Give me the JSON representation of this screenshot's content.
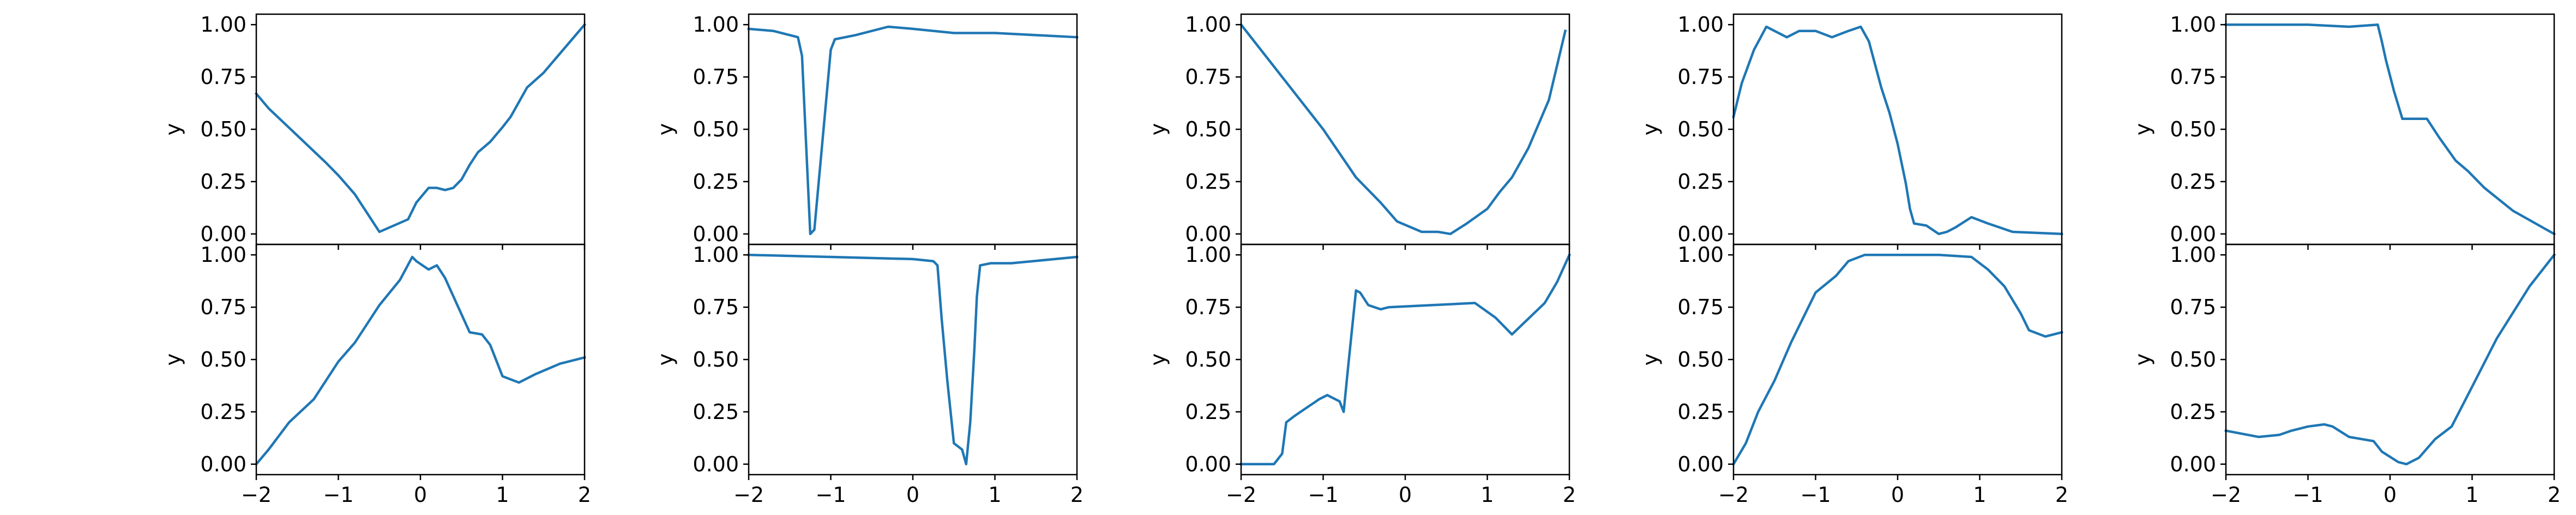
{
  "figure": {
    "background": "#ffffff",
    "line_color": "#1f77b4",
    "axes_color": "#000000"
  },
  "chart_data": [
    {
      "type": "line",
      "panel": "top",
      "column": 1,
      "xlabel": "",
      "ylabel": "y",
      "xlim": [
        -2,
        2
      ],
      "ylim": [
        -0.05,
        1.05
      ],
      "xticks": [
        -2,
        -1,
        0,
        1,
        2
      ],
      "yticks": [
        0,
        0.25,
        0.5,
        0.75,
        1
      ],
      "ytick_labels": [
        "0.00",
        "0.25",
        "0.50",
        "0.75",
        "1.00"
      ],
      "series": [
        {
          "x": [
            -2,
            -1.85,
            -1.5,
            -1.15,
            -1,
            -0.8,
            -0.5,
            -0.15,
            -0.05,
            0.1,
            0.2,
            0.3,
            0.4,
            0.5,
            0.6,
            0.7,
            0.85,
            1,
            1.1,
            1.3,
            1.5,
            2
          ],
          "y": [
            0.67,
            0.6,
            0.47,
            0.34,
            0.28,
            0.19,
            0.01,
            0.07,
            0.15,
            0.22,
            0.22,
            0.21,
            0.22,
            0.26,
            0.33,
            0.39,
            0.44,
            0.51,
            0.56,
            0.7,
            0.77,
            1.0
          ]
        }
      ]
    },
    {
      "type": "line",
      "panel": "bottom",
      "column": 1,
      "xlabel": "",
      "ylabel": "y",
      "xlim": [
        -2,
        2
      ],
      "ylim": [
        -0.05,
        1.05
      ],
      "xticks": [
        -2,
        -1,
        0,
        1,
        2
      ],
      "xtick_labels": [
        "−2",
        "−1",
        "0",
        "1",
        "2"
      ],
      "yticks": [
        0,
        0.25,
        0.5,
        0.75,
        1
      ],
      "ytick_labels": [
        "0.00",
        "0.25",
        "0.50",
        "0.75",
        "1.00"
      ],
      "series": [
        {
          "x": [
            -2,
            -1.85,
            -1.6,
            -1.3,
            -1,
            -0.8,
            -0.5,
            -0.25,
            -0.1,
            -0.05,
            0.1,
            0.2,
            0.3,
            0.45,
            0.6,
            0.75,
            0.85,
            1,
            1.2,
            1.4,
            1.7,
            2
          ],
          "y": [
            0.0,
            0.07,
            0.2,
            0.31,
            0.49,
            0.58,
            0.76,
            0.88,
            0.99,
            0.97,
            0.93,
            0.95,
            0.89,
            0.76,
            0.63,
            0.62,
            0.57,
            0.42,
            0.39,
            0.43,
            0.48,
            0.51
          ]
        }
      ]
    },
    {
      "type": "line",
      "panel": "top",
      "column": 2,
      "xlabel": "",
      "ylabel": "y",
      "xlim": [
        -2,
        2
      ],
      "ylim": [
        -0.05,
        1.05
      ],
      "xticks": [
        -2,
        -1,
        0,
        1,
        2
      ],
      "yticks": [
        0,
        0.25,
        0.5,
        0.75,
        1
      ],
      "ytick_labels": [
        "0.00",
        "0.25",
        "0.50",
        "0.75",
        "1.00"
      ],
      "series": [
        {
          "x": [
            -2,
            -1.7,
            -1.4,
            -1.35,
            -1.25,
            -1.2,
            -1.1,
            -1,
            -0.95,
            -0.7,
            -0.3,
            0,
            0.5,
            1,
            1.5,
            2
          ],
          "y": [
            0.98,
            0.97,
            0.94,
            0.85,
            0.0,
            0.02,
            0.45,
            0.88,
            0.93,
            0.95,
            0.99,
            0.98,
            0.96,
            0.96,
            0.95,
            0.94
          ]
        }
      ]
    },
    {
      "type": "line",
      "panel": "bottom",
      "column": 2,
      "xlabel": "",
      "ylabel": "y",
      "xlim": [
        -2,
        2
      ],
      "ylim": [
        -0.05,
        1.05
      ],
      "xticks": [
        -2,
        -1,
        0,
        1,
        2
      ],
      "xtick_labels": [
        "−2",
        "−1",
        "0",
        "1",
        "2"
      ],
      "yticks": [
        0,
        0.25,
        0.5,
        0.75,
        1
      ],
      "ytick_labels": [
        "0.00",
        "0.25",
        "0.50",
        "0.75",
        "1.00"
      ],
      "series": [
        {
          "x": [
            -2,
            -1,
            0,
            0.25,
            0.3,
            0.35,
            0.42,
            0.5,
            0.6,
            0.65,
            0.7,
            0.75,
            0.78,
            0.82,
            0.95,
            1.2,
            2
          ],
          "y": [
            1.0,
            0.99,
            0.98,
            0.97,
            0.95,
            0.7,
            0.4,
            0.1,
            0.07,
            0.0,
            0.2,
            0.55,
            0.8,
            0.95,
            0.96,
            0.96,
            0.99
          ]
        }
      ]
    },
    {
      "type": "line",
      "panel": "top",
      "column": 3,
      "xlabel": "",
      "ylabel": "y",
      "xlim": [
        -2,
        2
      ],
      "ylim": [
        -0.05,
        1.05
      ],
      "xticks": [
        -2,
        -1,
        0,
        1,
        2
      ],
      "yticks": [
        0,
        0.25,
        0.5,
        0.75,
        1
      ],
      "ytick_labels": [
        "0.00",
        "0.25",
        "0.50",
        "0.75",
        "1.00"
      ],
      "series": [
        {
          "x": [
            -2,
            -1.5,
            -1,
            -0.6,
            -0.3,
            -0.1,
            0.2,
            0.4,
            0.55,
            0.75,
            1,
            1.15,
            1.3,
            1.5,
            1.75,
            1.95
          ],
          "y": [
            1.0,
            0.75,
            0.5,
            0.27,
            0.15,
            0.06,
            0.01,
            0.01,
            0.0,
            0.05,
            0.12,
            0.2,
            0.27,
            0.41,
            0.64,
            0.97
          ]
        }
      ]
    },
    {
      "type": "line",
      "panel": "bottom",
      "column": 3,
      "xlabel": "",
      "ylabel": "y",
      "xlim": [
        -2,
        2
      ],
      "ylim": [
        -0.05,
        1.05
      ],
      "xticks": [
        -2,
        -1,
        0,
        1,
        2
      ],
      "xtick_labels": [
        "−2",
        "−1",
        "0",
        "1",
        "2"
      ],
      "yticks": [
        0,
        0.25,
        0.5,
        0.75,
        1
      ],
      "ytick_labels": [
        "0.00",
        "0.25",
        "0.50",
        "0.75",
        "1.00"
      ],
      "series": [
        {
          "x": [
            -2,
            -1.6,
            -1.5,
            -1.45,
            -1.35,
            -1.2,
            -1.05,
            -0.95,
            -0.9,
            -0.8,
            -0.75,
            -0.7,
            -0.6,
            -0.55,
            -0.45,
            -0.3,
            -0.2,
            0.85,
            1.1,
            1.3,
            1.7,
            1.85,
            2
          ],
          "y": [
            0.0,
            0.0,
            0.05,
            0.2,
            0.23,
            0.27,
            0.31,
            0.33,
            0.32,
            0.3,
            0.25,
            0.45,
            0.83,
            0.82,
            0.76,
            0.74,
            0.75,
            0.77,
            0.7,
            0.62,
            0.77,
            0.87,
            1.0
          ]
        }
      ]
    },
    {
      "type": "line",
      "panel": "top",
      "column": 4,
      "xlabel": "",
      "ylabel": "y",
      "xlim": [
        -2,
        2
      ],
      "ylim": [
        -0.05,
        1.05
      ],
      "xticks": [
        -2,
        -1,
        0,
        1,
        2
      ],
      "yticks": [
        0,
        0.25,
        0.5,
        0.75,
        1
      ],
      "ytick_labels": [
        "0.00",
        "0.25",
        "0.50",
        "0.75",
        "1.00"
      ],
      "series": [
        {
          "x": [
            -2,
            -1.9,
            -1.75,
            -1.6,
            -1.5,
            -1.35,
            -1.2,
            -1,
            -0.8,
            -0.6,
            -0.45,
            -0.35,
            -0.2,
            -0.1,
            0,
            0.1,
            0.15,
            0.2,
            0.35,
            0.5,
            0.6,
            0.7,
            0.9,
            1.1,
            1.25,
            1.4,
            2
          ],
          "y": [
            0.56,
            0.72,
            0.88,
            0.99,
            0.97,
            0.94,
            0.97,
            0.97,
            0.94,
            0.97,
            0.99,
            0.92,
            0.7,
            0.58,
            0.43,
            0.24,
            0.12,
            0.05,
            0.04,
            0.0,
            0.01,
            0.03,
            0.08,
            0.05,
            0.03,
            0.01,
            0.0
          ]
        }
      ]
    },
    {
      "type": "line",
      "panel": "bottom",
      "column": 4,
      "xlabel": "",
      "ylabel": "y",
      "xlim": [
        -2,
        2
      ],
      "ylim": [
        -0.05,
        1.05
      ],
      "xticks": [
        -2,
        -1,
        0,
        1,
        2
      ],
      "xtick_labels": [
        "−2",
        "−1",
        "0",
        "1",
        "2"
      ],
      "yticks": [
        0,
        0.25,
        0.5,
        0.75,
        1
      ],
      "ytick_labels": [
        "0.00",
        "0.25",
        "0.50",
        "0.75",
        "1.00"
      ],
      "series": [
        {
          "x": [
            -2,
            -1.85,
            -1.7,
            -1.5,
            -1.3,
            -1,
            -0.75,
            -0.6,
            -0.4,
            -0.1,
            0.5,
            0.9,
            1.1,
            1.3,
            1.5,
            1.6,
            1.8,
            2
          ],
          "y": [
            0.0,
            0.1,
            0.25,
            0.4,
            0.58,
            0.82,
            0.9,
            0.97,
            1.0,
            1.0,
            1.0,
            0.99,
            0.93,
            0.85,
            0.72,
            0.64,
            0.61,
            0.63
          ]
        }
      ]
    },
    {
      "type": "line",
      "panel": "top",
      "column": 5,
      "xlabel": "",
      "ylabel": "y",
      "xlim": [
        -2,
        2
      ],
      "ylim": [
        -0.05,
        1.05
      ],
      "xticks": [
        -2,
        -1,
        0,
        1,
        2
      ],
      "yticks": [
        0,
        0.25,
        0.5,
        0.75,
        1
      ],
      "ytick_labels": [
        "0.00",
        "0.25",
        "0.50",
        "0.75",
        "1.00"
      ],
      "series": [
        {
          "x": [
            -2,
            -1,
            -0.5,
            -0.15,
            -0.1,
            -0.05,
            0.05,
            0.15,
            0.25,
            0.45,
            0.6,
            0.8,
            0.95,
            1.15,
            1.5,
            2
          ],
          "y": [
            1.0,
            1.0,
            0.99,
            1.0,
            0.92,
            0.83,
            0.68,
            0.55,
            0.55,
            0.55,
            0.46,
            0.35,
            0.3,
            0.22,
            0.11,
            0.0
          ]
        }
      ]
    },
    {
      "type": "line",
      "panel": "bottom",
      "column": 5,
      "xlabel": "",
      "ylabel": "y",
      "xlim": [
        -2,
        2
      ],
      "ylim": [
        -0.05,
        1.05
      ],
      "xticks": [
        -2,
        -1,
        0,
        1,
        2
      ],
      "xtick_labels": [
        "−2",
        "−1",
        "0",
        "1",
        "2"
      ],
      "yticks": [
        0,
        0.25,
        0.5,
        0.75,
        1
      ],
      "ytick_labels": [
        "0.00",
        "0.25",
        "0.50",
        "0.75",
        "1.00"
      ],
      "series": [
        {
          "x": [
            -2,
            -1.6,
            -1.35,
            -1.2,
            -1,
            -0.8,
            -0.7,
            -0.5,
            -0.2,
            -0.1,
            0.1,
            0.2,
            0.35,
            0.55,
            0.75,
            1,
            1.3,
            1.7,
            2
          ],
          "y": [
            0.16,
            0.13,
            0.14,
            0.16,
            0.18,
            0.19,
            0.18,
            0.13,
            0.11,
            0.06,
            0.01,
            0.0,
            0.03,
            0.12,
            0.18,
            0.37,
            0.6,
            0.85,
            1.0
          ]
        }
      ]
    }
  ]
}
